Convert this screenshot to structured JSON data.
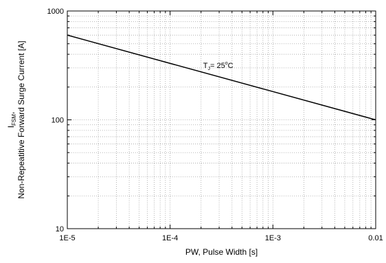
{
  "chart_data": {
    "type": "line",
    "x_scale": "log",
    "y_scale": "log",
    "xlim": [
      1e-05,
      0.01
    ],
    "ylim": [
      10,
      1000
    ],
    "grid": true,
    "legend": "none",
    "x_ticks": [
      1e-05,
      0.0001,
      0.001,
      0.01
    ],
    "x_tick_labels": [
      "1E-5",
      "1E-4",
      "1E-3",
      "0.01"
    ],
    "y_ticks": [
      10,
      100,
      1000
    ],
    "y_tick_labels": [
      "10",
      "100",
      "1000"
    ],
    "xlabel": "PW, Pulse Width [s]",
    "ylabel": {
      "symbol_main": "I",
      "symbol_sub": "FSM",
      "symbol_suffix": ",",
      "line2": "Non-Repeatitive Forward Surge Current [A]"
    },
    "series": [
      {
        "x": [
          1e-05,
          0.01
        ],
        "y": [
          600,
          100
        ]
      }
    ],
    "annotation": {
      "main": "T",
      "sub": "J",
      "rest": "= 25",
      "sup": "o",
      "unit": "C",
      "x": 0.0004,
      "y": 175
    },
    "colors": {
      "line": "#000000",
      "grid": "#a0a0a0",
      "axis": "#000000"
    }
  }
}
